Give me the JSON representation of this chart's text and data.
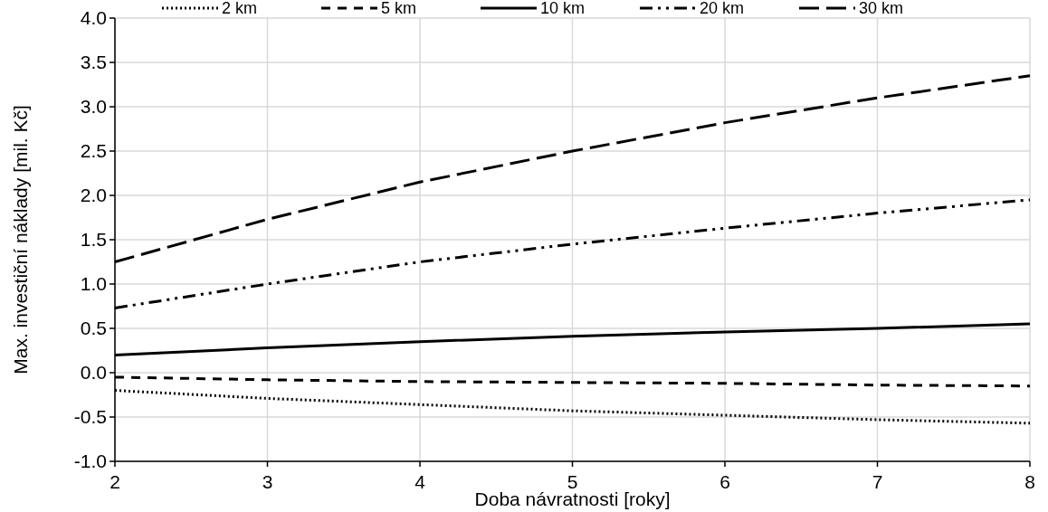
{
  "chart_data": {
    "type": "line",
    "xlabel": "Doba návratnosti [roky]",
    "ylabel": "Max. investiční náklady [mil. Kč]",
    "x": [
      2,
      3,
      4,
      5,
      6,
      7,
      8
    ],
    "series": [
      {
        "name": "2 km",
        "color": "#000000",
        "line_style": "dotted",
        "values": [
          -0.2,
          -0.29,
          -0.36,
          -0.43,
          -0.48,
          -0.53,
          -0.57
        ]
      },
      {
        "name": "5 km",
        "color": "#000000",
        "line_style": "dashed",
        "values": [
          -0.05,
          -0.08,
          -0.1,
          -0.11,
          -0.12,
          -0.14,
          -0.15
        ]
      },
      {
        "name": "10 km",
        "color": "#000000",
        "line_style": "solid",
        "values": [
          0.2,
          0.28,
          0.35,
          0.41,
          0.46,
          0.5,
          0.55
        ]
      },
      {
        "name": "20 km",
        "color": "#000000",
        "line_style": "dashdot",
        "values": [
          0.73,
          1.0,
          1.25,
          1.45,
          1.63,
          1.8,
          1.95
        ]
      },
      {
        "name": "30 km",
        "color": "#000000",
        "line_style": "dashed",
        "values": [
          1.25,
          1.73,
          2.15,
          2.5,
          2.82,
          3.1,
          3.35
        ]
      }
    ],
    "xlim": [
      2,
      8
    ],
    "xticks": [
      2,
      3,
      4,
      5,
      6,
      7,
      8
    ],
    "ylim": [
      -1,
      4
    ],
    "yticks": [
      {
        "value": -1,
        "label": "-1.0"
      },
      {
        "value": -0.5,
        "label": "-0.5"
      },
      {
        "value": 0,
        "label": "0.0"
      },
      {
        "value": 0.5,
        "label": "0.5"
      },
      {
        "value": 1,
        "label": "1.0"
      },
      {
        "value": 1.5,
        "label": "1.5"
      },
      {
        "value": 2,
        "label": "2.0"
      },
      {
        "value": 2.5,
        "label": "2.5"
      },
      {
        "value": 3,
        "label": "3.0"
      },
      {
        "value": 3.5,
        "label": "3.5"
      },
      {
        "value": 4,
        "label": "4.0"
      }
    ],
    "grid": true,
    "legend": "top",
    "marker": "none"
  }
}
